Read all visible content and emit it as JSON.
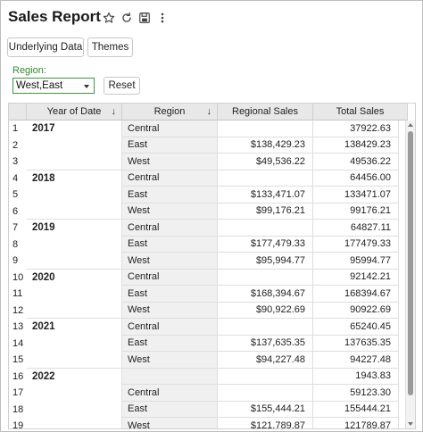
{
  "title": "Sales Report",
  "icons": [
    "star-icon",
    "refresh-icon",
    "save-icon",
    "more-vert-icon"
  ],
  "buttons": {
    "underlying_data": "Underlying Data",
    "themes": "Themes",
    "reset": "Reset"
  },
  "filter": {
    "label": "Region:",
    "value": "West,East"
  },
  "table": {
    "headers": {
      "year": "Year of Date",
      "region": "Region",
      "regional_sales": "Regional Sales",
      "total_sales": "Total Sales"
    },
    "rows": [
      {
        "n": "1",
        "year": "2017",
        "region": "Central",
        "regional": "",
        "total": "37922.63"
      },
      {
        "n": "2",
        "year": "",
        "region": "East",
        "regional": "$138,429.23",
        "total": "138429.23"
      },
      {
        "n": "3",
        "year": "",
        "region": "West",
        "regional": "$49,536.22",
        "total": "49536.22"
      },
      {
        "n": "4",
        "year": "2018",
        "region": "Central",
        "regional": "",
        "total": "64456.00"
      },
      {
        "n": "5",
        "year": "",
        "region": "East",
        "regional": "$133,471.07",
        "total": "133471.07"
      },
      {
        "n": "6",
        "year": "",
        "region": "West",
        "regional": "$99,176.21",
        "total": "99176.21"
      },
      {
        "n": "7",
        "year": "2019",
        "region": "Central",
        "regional": "",
        "total": "64827.11"
      },
      {
        "n": "8",
        "year": "",
        "region": "East",
        "regional": "$177,479.33",
        "total": "177479.33"
      },
      {
        "n": "9",
        "year": "",
        "region": "West",
        "regional": "$95,994.77",
        "total": "95994.77"
      },
      {
        "n": "10",
        "year": "2020",
        "region": "Central",
        "regional": "",
        "total": "92142.21"
      },
      {
        "n": "11",
        "year": "",
        "region": "East",
        "regional": "$168,394.67",
        "total": "168394.67"
      },
      {
        "n": "12",
        "year": "",
        "region": "West",
        "regional": "$90,922.69",
        "total": "90922.69"
      },
      {
        "n": "13",
        "year": "2021",
        "region": "Central",
        "regional": "",
        "total": "65240.45"
      },
      {
        "n": "14",
        "year": "",
        "region": "East",
        "regional": "$137,635.35",
        "total": "137635.35"
      },
      {
        "n": "15",
        "year": "",
        "region": "West",
        "regional": "$94,227.48",
        "total": "94227.48"
      },
      {
        "n": "16",
        "year": "2022",
        "region": "",
        "regional": "",
        "total": "1943.83"
      },
      {
        "n": "17",
        "year": "",
        "region": "Central",
        "regional": "",
        "total": "59123.30"
      },
      {
        "n": "18",
        "year": "",
        "region": "East",
        "regional": "$155,444.21",
        "total": "155444.21"
      },
      {
        "n": "19",
        "year": "",
        "region": "West",
        "regional": "$121,789.87",
        "total": "121789.87"
      }
    ]
  },
  "colors": {
    "accent_green": "#2e8b2e",
    "header_bg": "#e8e8e8",
    "region_bg": "#f0f0f0"
  }
}
